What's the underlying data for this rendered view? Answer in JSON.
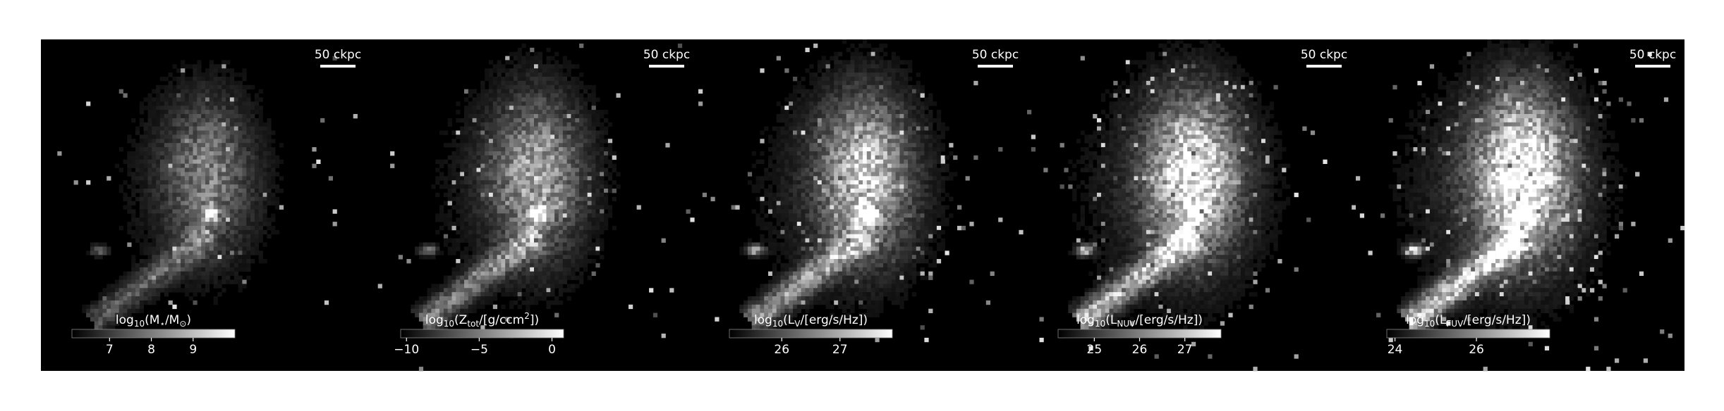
{
  "panels": [
    {
      "label": [
        {
          "text": "log"
        },
        {
          "text": "10",
          "sub": true
        },
        {
          "text": "(M"
        },
        {
          "text": "⋆",
          "sub": true
        },
        {
          "text": "/M"
        },
        {
          "text": "⊙",
          "sub": true
        },
        {
          "text": ")"
        }
      ],
      "clim": [
        6.1,
        10
      ],
      "ticks": [
        7,
        8,
        9
      ],
      "scalebar": "50 ckpc"
    },
    {
      "label": [
        {
          "text": "log"
        },
        {
          "text": "10",
          "sub": true
        },
        {
          "text": "(Z"
        },
        {
          "text": "tot",
          "sub": true
        },
        {
          "text": "/[g/ccm"
        },
        {
          "text": "2",
          "sup": true
        },
        {
          "text": "])"
        }
      ],
      "clim": [
        -10.4,
        0.8
      ],
      "ticks": [
        {
          "value": -10,
          "label": "−10"
        },
        {
          "value": -5,
          "label": "−5"
        },
        0
      ],
      "scalebar": "50 ckpc"
    },
    {
      "label": [
        {
          "text": "log"
        },
        {
          "text": "10",
          "sub": true
        },
        {
          "text": "(L"
        },
        {
          "text": "V",
          "sub": true
        },
        {
          "text": "/[erg/s/Hz])"
        }
      ],
      "clim": [
        25.1,
        27.9
      ],
      "ticks": [
        26,
        27
      ],
      "scalebar": "50 ckpc"
    },
    {
      "label": [
        {
          "text": "log"
        },
        {
          "text": "10",
          "sub": true
        },
        {
          "text": "(L"
        },
        {
          "text": "NUV",
          "sub": true
        },
        {
          "text": "/[erg/s/Hz])"
        }
      ],
      "clim": [
        24.2,
        27.8
      ],
      "ticks": [
        25,
        26,
        27
      ],
      "scalebar": "50 ckpc"
    },
    {
      "label": [
        {
          "text": "log"
        },
        {
          "text": "10",
          "sub": true
        },
        {
          "text": "(L"
        },
        {
          "text": "FUV",
          "sub": true
        },
        {
          "text": "/[erg/s/Hz])"
        }
      ],
      "clim": [
        23.8,
        27.8
      ],
      "ticks": [
        24,
        26
      ],
      "scalebar": "50 ckpc"
    }
  ]
}
